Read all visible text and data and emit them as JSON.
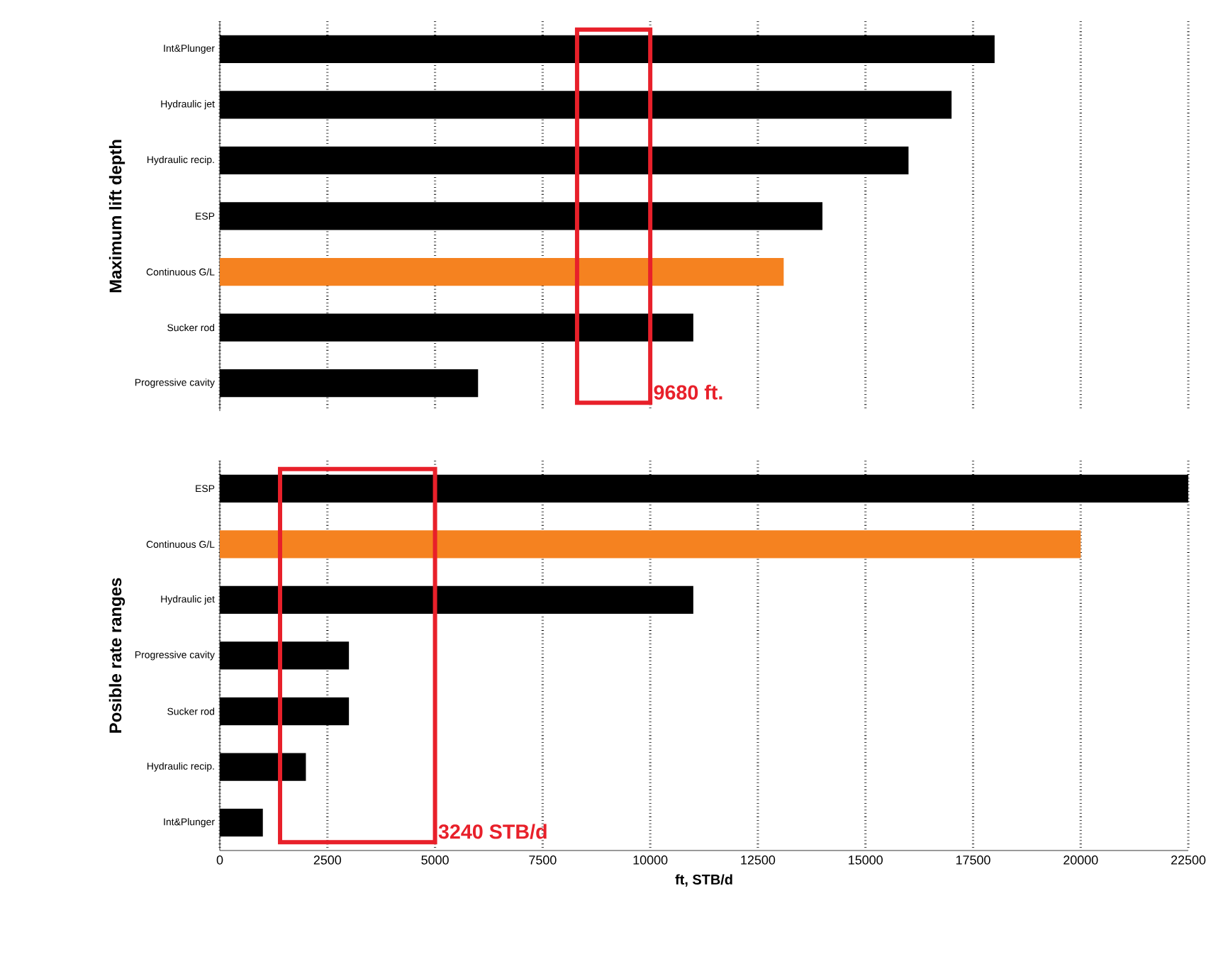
{
  "chart_data": [
    {
      "type": "bar",
      "orientation": "horizontal",
      "ylabel": "Maximum lift depth",
      "categories": [
        "Int&Plunger",
        "Hydraulic jet",
        "Hydraulic recip.",
        "ESP",
        "Continuous  G/L",
        "Sucker rod",
        "Progressive cavity"
      ],
      "values": [
        18000,
        17000,
        16000,
        14000,
        13100,
        11000,
        6000
      ],
      "colors": [
        "#000000",
        "#000000",
        "#000000",
        "#000000",
        "#f58220",
        "#000000",
        "#000000"
      ],
      "xlim": [
        0,
        22500
      ],
      "xticks": [
        0,
        2500,
        5000,
        7500,
        10000,
        12500,
        15000,
        17500,
        20000,
        22500
      ],
      "grid": "x",
      "tick_labels": "y",
      "annotations": [
        "9680 ft."
      ]
    },
    {
      "type": "bar",
      "orientation": "horizontal",
      "ylabel": "Posible rate ranges",
      "xlabel": "ft, STB/d",
      "categories": [
        "ESP",
        "Continuous  G/L",
        "Hydraulic jet",
        "Progressive cavity",
        "Sucker rod",
        "Hydraulic recip.",
        "Int&Plunger"
      ],
      "values": [
        22500,
        20000,
        11000,
        3000,
        3000,
        2000,
        1000
      ],
      "colors": [
        "#000000",
        "#f58220",
        "#000000",
        "#000000",
        "#000000",
        "#000000",
        "#000000"
      ],
      "xlim": [
        0,
        22500
      ],
      "xticks": [
        0,
        2500,
        5000,
        7500,
        10000,
        12500,
        15000,
        17500,
        20000,
        22500
      ],
      "grid": "x",
      "annotations": [
        "3240 STB/d"
      ]
    }
  ]
}
